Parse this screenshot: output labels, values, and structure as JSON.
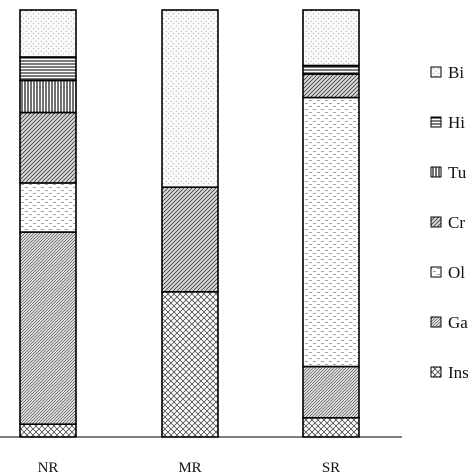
{
  "chart_data": {
    "type": "bar",
    "stacked": true,
    "normalized_percent": true,
    "categories": [
      "NR",
      "MR",
      "SR"
    ],
    "series": [
      {
        "name": "Ins",
        "pattern": "crosshatch",
        "values": [
          3.0,
          34.0,
          4.5
        ]
      },
      {
        "name": "Ga",
        "pattern": "diag-dense",
        "values": [
          45.0,
          0.0,
          12.0
        ]
      },
      {
        "name": "Ol",
        "pattern": "dashes",
        "values": [
          11.5,
          0.0,
          63.0
        ]
      },
      {
        "name": "Cr",
        "pattern": "diag-hatch",
        "values": [
          16.5,
          24.5,
          5.5
        ]
      },
      {
        "name": "Tu",
        "pattern": "vertical",
        "values": [
          7.5,
          0.0,
          0.0
        ]
      },
      {
        "name": "Hi",
        "pattern": "horizontal",
        "values": [
          5.5,
          0.0,
          2.0
        ]
      },
      {
        "name": "Bi",
        "pattern": "dots",
        "values": [
          11.0,
          41.5,
          13.0
        ]
      }
    ],
    "legend_position": "right",
    "legend_order": [
      "Bi",
      "Hi",
      "Tu",
      "Cr",
      "Ol",
      "Ga",
      "Ins"
    ],
    "grid": false,
    "ylim": [
      0,
      100
    ]
  }
}
